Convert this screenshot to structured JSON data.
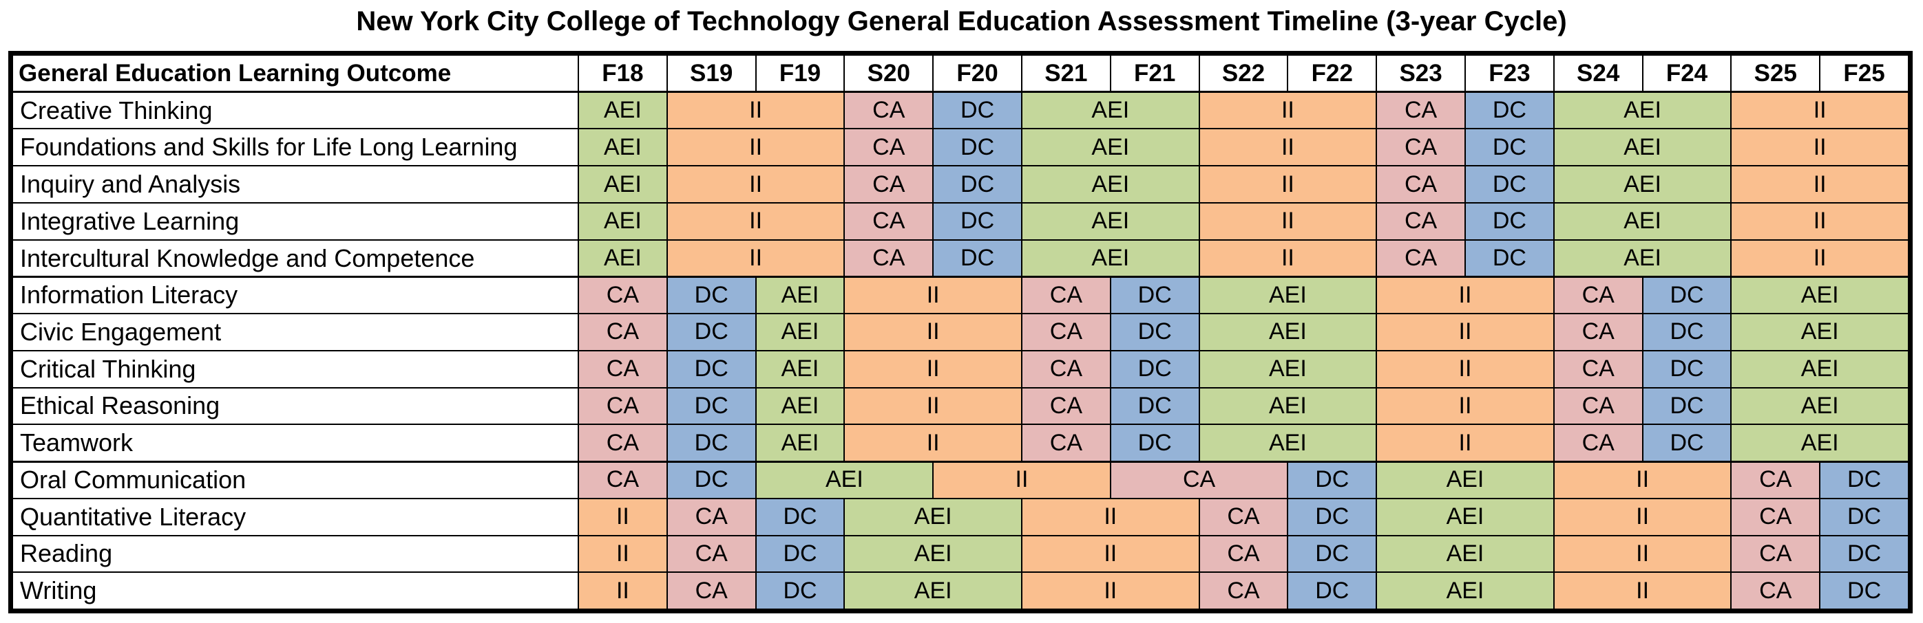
{
  "title": "New York City College of Technology General Education Assessment Timeline (3-year Cycle)",
  "header": {
    "outcome_label": "General Education Learning Outcome",
    "terms": [
      "F18",
      "S19",
      "F19",
      "S20",
      "F20",
      "S21",
      "F21",
      "S22",
      "F22",
      "S23",
      "F23",
      "S24",
      "F24",
      "S25",
      "F25"
    ]
  },
  "colors": {
    "CA": "#e6b9b8",
    "DC": "#95b3d7",
    "AEI": "#c4d79b",
    "II": "#fabf8f"
  },
  "rows": [
    {
      "label": "Creative Thinking",
      "segments": [
        [
          "AEI",
          1
        ],
        [
          "II",
          2
        ],
        [
          "CA",
          1
        ],
        [
          "DC",
          1
        ],
        [
          "AEI",
          2
        ],
        [
          "II",
          2
        ],
        [
          "CA",
          1
        ],
        [
          "DC",
          1
        ],
        [
          "AEI",
          2
        ],
        [
          "II",
          2
        ]
      ]
    },
    {
      "label": "Foundations and Skills for Life Long Learning",
      "segments": [
        [
          "AEI",
          1
        ],
        [
          "II",
          2
        ],
        [
          "CA",
          1
        ],
        [
          "DC",
          1
        ],
        [
          "AEI",
          2
        ],
        [
          "II",
          2
        ],
        [
          "CA",
          1
        ],
        [
          "DC",
          1
        ],
        [
          "AEI",
          2
        ],
        [
          "II",
          2
        ]
      ]
    },
    {
      "label": "Inquiry and Analysis",
      "segments": [
        [
          "AEI",
          1
        ],
        [
          "II",
          2
        ],
        [
          "CA",
          1
        ],
        [
          "DC",
          1
        ],
        [
          "AEI",
          2
        ],
        [
          "II",
          2
        ],
        [
          "CA",
          1
        ],
        [
          "DC",
          1
        ],
        [
          "AEI",
          2
        ],
        [
          "II",
          2
        ]
      ]
    },
    {
      "label": "Integrative Learning",
      "segments": [
        [
          "AEI",
          1
        ],
        [
          "II",
          2
        ],
        [
          "CA",
          1
        ],
        [
          "DC",
          1
        ],
        [
          "AEI",
          2
        ],
        [
          "II",
          2
        ],
        [
          "CA",
          1
        ],
        [
          "DC",
          1
        ],
        [
          "AEI",
          2
        ],
        [
          "II",
          2
        ]
      ]
    },
    {
      "label": "Intercultural Knowledge and Competence",
      "segments": [
        [
          "AEI",
          1
        ],
        [
          "II",
          2
        ],
        [
          "CA",
          1
        ],
        [
          "DC",
          1
        ],
        [
          "AEI",
          2
        ],
        [
          "II",
          2
        ],
        [
          "CA",
          1
        ],
        [
          "DC",
          1
        ],
        [
          "AEI",
          2
        ],
        [
          "II",
          2
        ]
      ]
    },
    {
      "label": "Information Literacy",
      "segments": [
        [
          "CA",
          1
        ],
        [
          "DC",
          1
        ],
        [
          "AEI",
          1
        ],
        [
          "II",
          2
        ],
        [
          "CA",
          1
        ],
        [
          "DC",
          1
        ],
        [
          "AEI",
          2
        ],
        [
          "II",
          2
        ],
        [
          "CA",
          1
        ],
        [
          "DC",
          1
        ],
        [
          "AEI",
          2
        ]
      ]
    },
    {
      "label": "Civic Engagement",
      "segments": [
        [
          "CA",
          1
        ],
        [
          "DC",
          1
        ],
        [
          "AEI",
          1
        ],
        [
          "II",
          2
        ],
        [
          "CA",
          1
        ],
        [
          "DC",
          1
        ],
        [
          "AEI",
          2
        ],
        [
          "II",
          2
        ],
        [
          "CA",
          1
        ],
        [
          "DC",
          1
        ],
        [
          "AEI",
          2
        ]
      ]
    },
    {
      "label": "Critical Thinking",
      "segments": [
        [
          "CA",
          1
        ],
        [
          "DC",
          1
        ],
        [
          "AEI",
          1
        ],
        [
          "II",
          2
        ],
        [
          "CA",
          1
        ],
        [
          "DC",
          1
        ],
        [
          "AEI",
          2
        ],
        [
          "II",
          2
        ],
        [
          "CA",
          1
        ],
        [
          "DC",
          1
        ],
        [
          "AEI",
          2
        ]
      ]
    },
    {
      "label": "Ethical Reasoning",
      "segments": [
        [
          "CA",
          1
        ],
        [
          "DC",
          1
        ],
        [
          "AEI",
          1
        ],
        [
          "II",
          2
        ],
        [
          "CA",
          1
        ],
        [
          "DC",
          1
        ],
        [
          "AEI",
          2
        ],
        [
          "II",
          2
        ],
        [
          "CA",
          1
        ],
        [
          "DC",
          1
        ],
        [
          "AEI",
          2
        ]
      ]
    },
    {
      "label": "Teamwork",
      "segments": [
        [
          "CA",
          1
        ],
        [
          "DC",
          1
        ],
        [
          "AEI",
          1
        ],
        [
          "II",
          2
        ],
        [
          "CA",
          1
        ],
        [
          "DC",
          1
        ],
        [
          "AEI",
          2
        ],
        [
          "II",
          2
        ],
        [
          "CA",
          1
        ],
        [
          "DC",
          1
        ],
        [
          "AEI",
          2
        ]
      ]
    },
    {
      "label": "Oral Communication",
      "segments": [
        [
          "CA",
          1
        ],
        [
          "DC",
          1
        ],
        [
          "AEI",
          2
        ],
        [
          "II",
          2
        ],
        [
          "CA",
          2
        ],
        [
          "DC",
          1
        ],
        [
          "AEI",
          2
        ],
        [
          "II",
          2
        ],
        [
          "CA",
          1
        ],
        [
          "DC",
          1
        ]
      ]
    },
    {
      "label": "Quantitative Literacy",
      "segments": [
        [
          "II",
          1
        ],
        [
          "CA",
          1
        ],
        [
          "DC",
          1
        ],
        [
          "AEI",
          2
        ],
        [
          "II",
          2
        ],
        [
          "CA",
          1
        ],
        [
          "DC",
          1
        ],
        [
          "AEI",
          2
        ],
        [
          "II",
          2
        ],
        [
          "CA",
          1
        ],
        [
          "DC",
          1
        ]
      ]
    },
    {
      "label": "Reading",
      "segments": [
        [
          "II",
          1
        ],
        [
          "CA",
          1
        ],
        [
          "DC",
          1
        ],
        [
          "AEI",
          2
        ],
        [
          "II",
          2
        ],
        [
          "CA",
          1
        ],
        [
          "DC",
          1
        ],
        [
          "AEI",
          2
        ],
        [
          "II",
          2
        ],
        [
          "CA",
          1
        ],
        [
          "DC",
          1
        ]
      ]
    },
    {
      "label": "Writing",
      "segments": [
        [
          "II",
          1
        ],
        [
          "CA",
          1
        ],
        [
          "DC",
          1
        ],
        [
          "AEI",
          2
        ],
        [
          "II",
          2
        ],
        [
          "CA",
          1
        ],
        [
          "DC",
          1
        ],
        [
          "AEI",
          2
        ],
        [
          "II",
          2
        ],
        [
          "CA",
          1
        ],
        [
          "DC",
          1
        ]
      ]
    }
  ]
}
